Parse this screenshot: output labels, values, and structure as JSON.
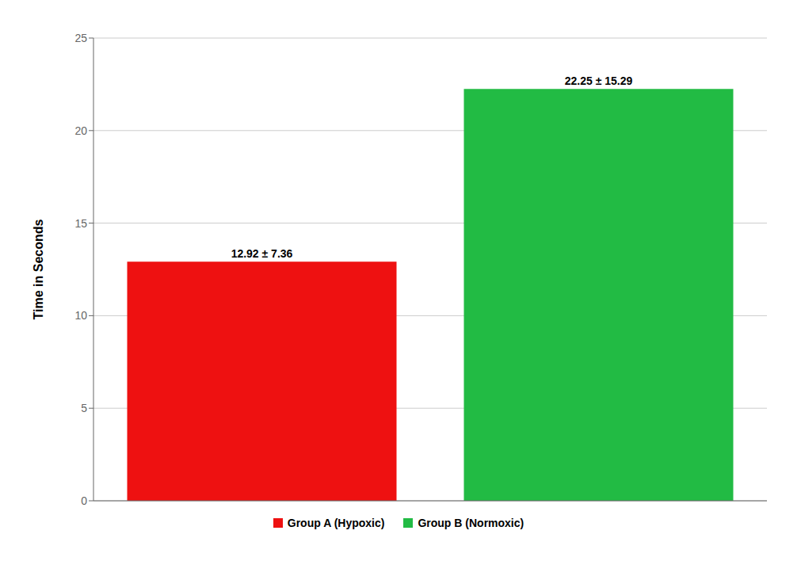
{
  "chart_data": {
    "type": "bar",
    "categories": [
      "Group A (Hypoxic)",
      "Group B (Normoxic)"
    ],
    "values": [
      12.92,
      22.25
    ],
    "value_labels": [
      "12.92 ± 7.36",
      "22.25 ± 15.29"
    ],
    "colors": [
      "#ee1111",
      "#22bb44"
    ],
    "ylabel": "Time in Seconds",
    "ylim": [
      0,
      25
    ],
    "yticks": [
      0,
      5,
      10,
      15,
      20,
      25
    ],
    "grid": true,
    "tick_labels": "y",
    "legend": "bottom",
    "data_labels": true
  }
}
